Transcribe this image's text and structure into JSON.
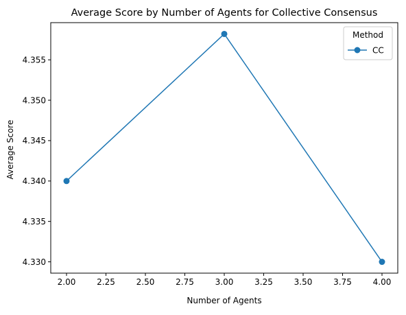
{
  "chart_data": {
    "type": "line",
    "title": "Average Score by Number of Agents for Collective Consensus",
    "xlabel": "Number of Agents",
    "ylabel": "Average Score",
    "xlim": [
      1.9,
      4.1
    ],
    "ylim": [
      4.3286,
      4.3596
    ],
    "xticks": [
      2.0,
      2.25,
      2.5,
      2.75,
      3.0,
      3.25,
      3.5,
      3.75,
      4.0
    ],
    "xtick_labels": [
      "2.00",
      "2.25",
      "2.50",
      "2.75",
      "3.00",
      "3.25",
      "3.50",
      "3.75",
      "4.00"
    ],
    "yticks": [
      4.33,
      4.335,
      4.34,
      4.345,
      4.35,
      4.355
    ],
    "ytick_labels": [
      "4.330",
      "4.335",
      "4.340",
      "4.345",
      "4.350",
      "4.355"
    ],
    "grid": false,
    "legend": {
      "title": "Method",
      "placement": "top-right"
    },
    "series": [
      {
        "name": "CC",
        "color": "#1f77b4",
        "marker": "circle",
        "x": [
          2,
          3,
          4
        ],
        "y": [
          4.34,
          4.3582,
          4.33
        ]
      }
    ]
  }
}
